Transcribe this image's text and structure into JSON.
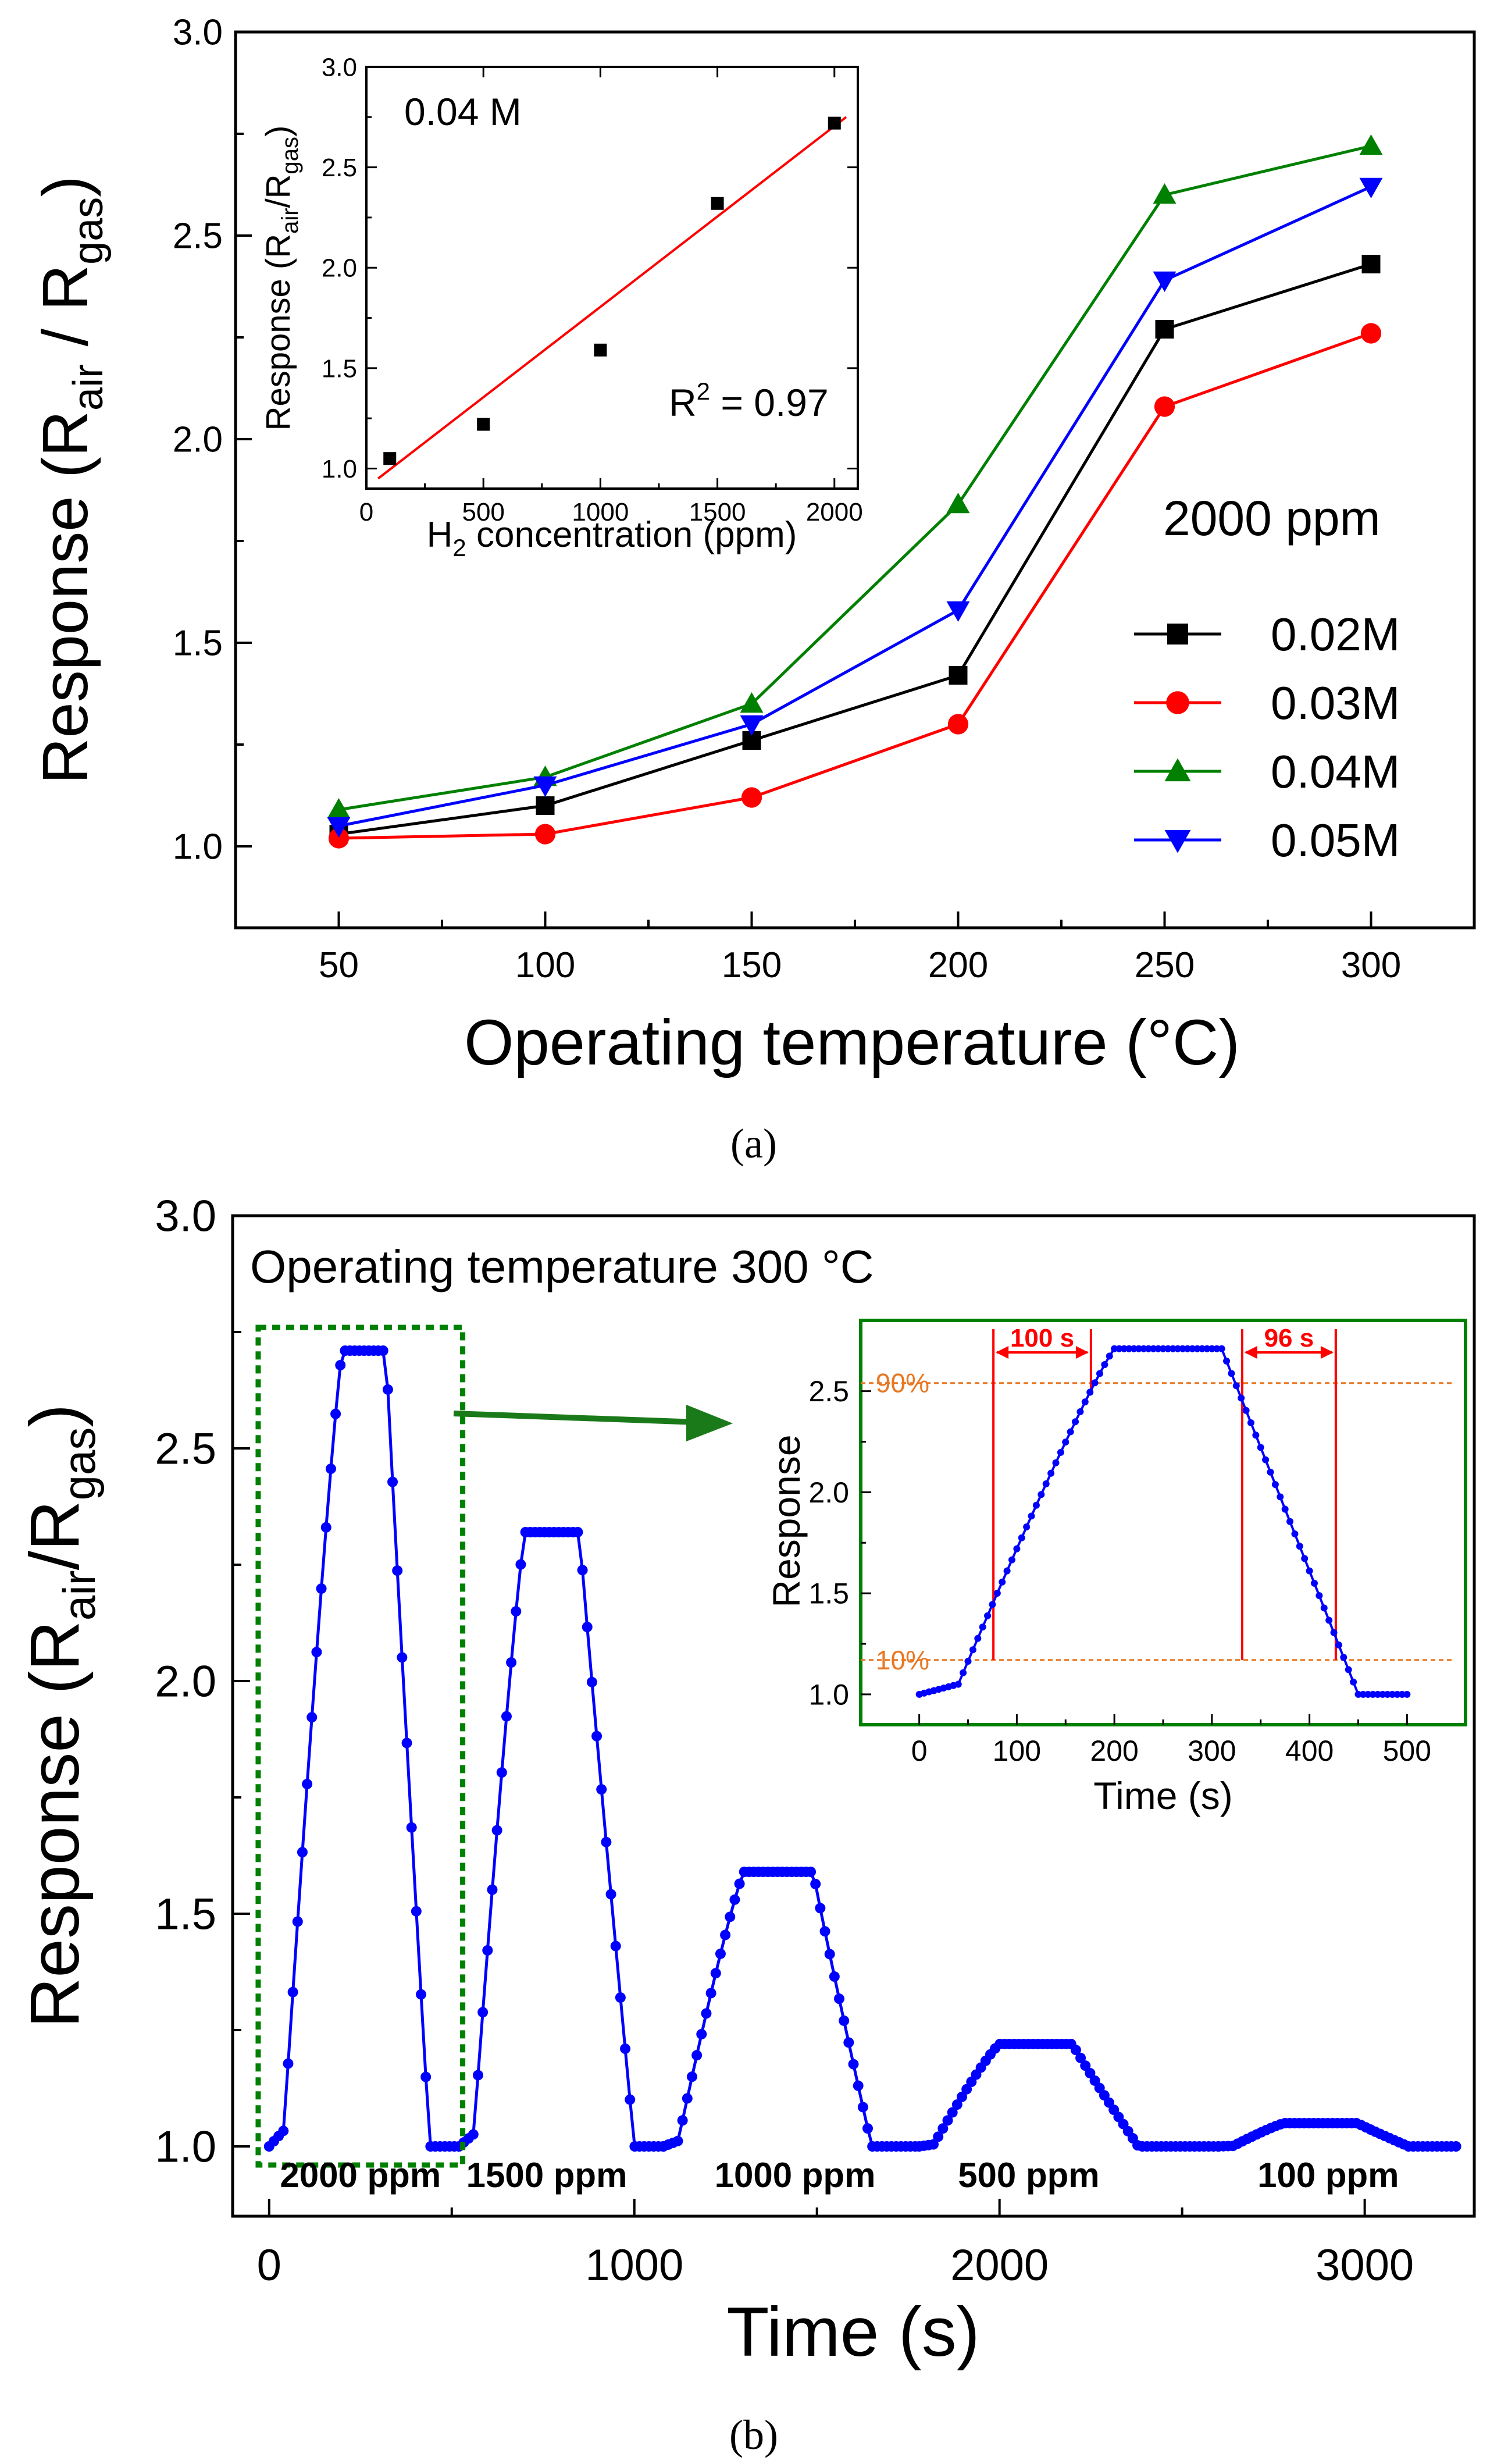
{
  "panel_labels": {
    "a": "(a)",
    "b": "(b)"
  },
  "chart_data": [
    {
      "id": "a-main",
      "type": "line",
      "xlabel": "Operating temperature (°C)",
      "ylabel": "Response (R",
      "ylabel_sub1": "air",
      "ylabel_mid": " / R",
      "ylabel_sub2": "gas",
      "ylabel_end": ")",
      "xlim": [
        25,
        325
      ],
      "ylim": [
        0.8,
        3.0
      ],
      "xticks": [
        50,
        100,
        150,
        200,
        250,
        300
      ],
      "yticks": [
        1.0,
        1.5,
        2.0,
        2.5,
        3.0
      ],
      "ytick_labels": [
        "1.0",
        "1.5",
        "2.0",
        "2.5",
        "3.0"
      ],
      "legend_title": "2000 ppm",
      "legend_position": "right",
      "x": [
        50,
        100,
        150,
        200,
        250,
        300
      ],
      "series": [
        {
          "name": "0.02M",
          "color": "#000000",
          "marker": "square",
          "values": [
            1.03,
            1.1,
            1.26,
            1.42,
            2.27,
            2.43
          ]
        },
        {
          "name": "0.03M",
          "color": "#ff0000",
          "marker": "circle",
          "values": [
            1.02,
            1.03,
            1.12,
            1.3,
            2.08,
            2.26
          ]
        },
        {
          "name": "0.04M",
          "color": "#008000",
          "marker": "triangle-up",
          "values": [
            1.09,
            1.17,
            1.35,
            1.84,
            2.6,
            2.72
          ]
        },
        {
          "name": "0.05M",
          "color": "#0000ff",
          "marker": "triangle-down",
          "values": [
            1.05,
            1.15,
            1.3,
            1.58,
            2.39,
            2.62
          ]
        }
      ]
    },
    {
      "id": "a-inset",
      "type": "scatter",
      "annotation": "0.04 M",
      "r2_label": "R",
      "r2_sup": "2",
      "r2_value": " = 0.97",
      "xlabel_pre": "H",
      "xlabel_sub": "2",
      "xlabel_post": " concentration (ppm)",
      "ylabel": "Response (R",
      "ylabel_sub1": "air",
      "ylabel_mid": "/R",
      "ylabel_sub2": "gas",
      "ylabel_end": ")",
      "xlim": [
        0,
        2100
      ],
      "ylim": [
        0.9,
        3.0
      ],
      "xticks": [
        0,
        500,
        1000,
        1500,
        2000
      ],
      "yticks": [
        1.0,
        1.5,
        2.0,
        2.5,
        3.0
      ],
      "ytick_labels": [
        "1.0",
        "1.5",
        "2.0",
        "2.5",
        "3.0"
      ],
      "x": [
        100,
        500,
        1000,
        1500,
        2000
      ],
      "y": [
        1.05,
        1.22,
        1.59,
        2.32,
        2.72
      ],
      "fit": {
        "x": [
          50,
          2050
        ],
        "y": [
          0.95,
          2.75
        ],
        "color": "#ff0000"
      },
      "marker_color": "#000000"
    },
    {
      "id": "b-main",
      "type": "line",
      "annotation": "Operating temperature 300 °C",
      "xlabel": "Time (s)",
      "ylabel": "Response (R",
      "ylabel_sub1": "air",
      "ylabel_mid": "/R",
      "ylabel_sub2": "gas",
      "ylabel_end": ")",
      "xlim": [
        -100,
        3300
      ],
      "ylim": [
        0.85,
        3.0
      ],
      "xticks": [
        0,
        1000,
        2000,
        3000
      ],
      "yticks": [
        1.0,
        1.5,
        2.0,
        2.5,
        3.0
      ],
      "ytick_labels": [
        "1.0",
        "1.5",
        "2.0",
        "2.5",
        "3.0"
      ],
      "color": "#0000ff",
      "baseline": 1.0,
      "peaks": [
        {
          "label": "2000 ppm",
          "start": 0,
          "rise_end": 200,
          "plateau_end": 320,
          "fall_end": 440,
          "end": 520,
          "level": 2.71,
          "label_x": 250
        },
        {
          "label": "1500 ppm",
          "start": 520,
          "rise_end": 700,
          "plateau_end": 850,
          "fall_end": 1000,
          "end": 1080,
          "level": 2.32,
          "label_x": 760
        },
        {
          "label": "1000 ppm",
          "start": 1080,
          "rise_end": 1300,
          "plateau_end": 1490,
          "fall_end": 1650,
          "end": 1780,
          "level": 1.59,
          "label_x": 1440
        },
        {
          "label": "500 ppm",
          "start": 1780,
          "rise_end": 2000,
          "plateau_end": 2200,
          "fall_end": 2380,
          "end": 2600,
          "level": 1.22,
          "label_x": 2080
        },
        {
          "label": "100 ppm",
          "start": 2600,
          "rise_end": 2780,
          "plateau_end": 2980,
          "fall_end": 3120,
          "end": 3260,
          "level": 1.05,
          "label_x": 2900
        }
      ],
      "highlight_box": {
        "x": [
          -30,
          530
        ],
        "y": [
          0.96,
          2.76
        ],
        "color": "#008000"
      }
    },
    {
      "id": "b-inset",
      "type": "line",
      "xlabel": "Time (s)",
      "ylabel": "Response",
      "xlim": [
        -60,
        560
      ],
      "ylim": [
        0.85,
        2.85
      ],
      "xticks": [
        0,
        100,
        200,
        300,
        400,
        500
      ],
      "yticks": [
        1.0,
        1.5,
        2.0,
        2.5
      ],
      "ytick_labels": [
        "1.0",
        "1.5",
        "2.0",
        "2.5"
      ],
      "color": "#0000ff",
      "frame_color": "#008000",
      "curve": {
        "baseline": 1.0,
        "level": 2.71,
        "rise_start": 40,
        "rise_end": 200,
        "plateau_end": 310,
        "fall_end": 450,
        "end": 500
      },
      "threshold_90": {
        "label": "90%",
        "y": 2.54,
        "color": "#e87722"
      },
      "threshold_10": {
        "label": "10%",
        "y": 1.17,
        "color": "#e87722"
      },
      "response_time": {
        "label": "100 s",
        "x1": 76,
        "x2": 176,
        "color": "#ff0000"
      },
      "recovery_time": {
        "label": "96 s",
        "x1": 331,
        "x2": 427,
        "color": "#ff0000"
      }
    }
  ]
}
